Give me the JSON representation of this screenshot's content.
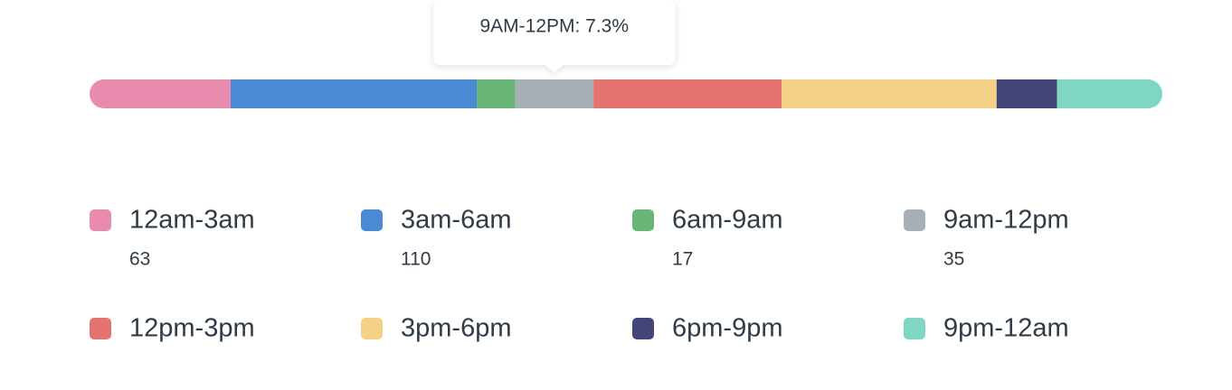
{
  "chart_data": {
    "type": "stacked_bar",
    "categories": [
      "12am-3am",
      "3am-6am",
      "6am-9am",
      "9am-12pm",
      "12pm-3pm",
      "3pm-6pm",
      "6pm-9pm",
      "9pm-12am"
    ],
    "values": [
      63,
      110,
      17,
      35,
      84,
      96,
      27,
      47
    ],
    "value_labels": [
      "63",
      "110",
      "17",
      "35",
      null,
      null,
      null,
      null
    ],
    "colors": [
      "#e98bae",
      "#4a89d3",
      "#67b577",
      "#a7afb7",
      "#e6736f",
      "#f4d186",
      "#434477",
      "#7fd7c3"
    ],
    "tooltip": "9AM-12PM: 7.3%"
  }
}
